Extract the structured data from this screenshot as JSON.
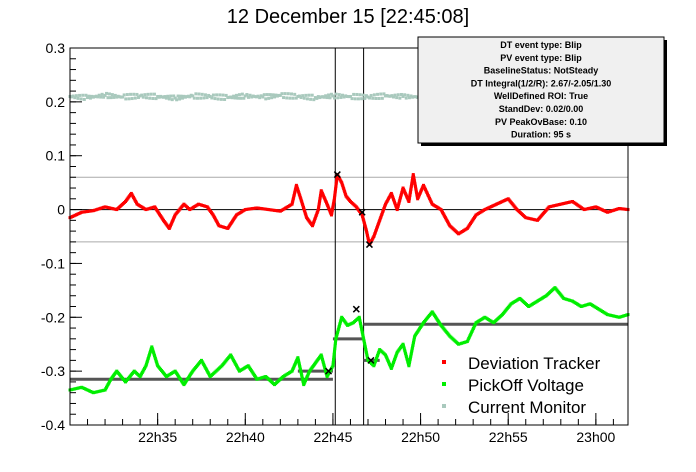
{
  "chart_data": {
    "type": "scatter",
    "title": "12 December 15 [22:45:08]",
    "xlabel": "",
    "ylabel": "",
    "xlim": [
      "22:30:00",
      "23:01:50"
    ],
    "ylim": [
      -0.4,
      0.3
    ],
    "x_ticks": [
      "22h35",
      "22h40",
      "22h45",
      "22h50",
      "22h55",
      "23h00"
    ],
    "y_ticks": [
      "0.3",
      "0.2",
      "0.1",
      "0",
      "-0.1",
      "-0.2",
      "-0.3",
      "-0.4"
    ],
    "colors": {
      "deviation": "#ff0000",
      "pickoff": "#00ee00",
      "current": "#a9c9bd",
      "baseline": "#555555",
      "event_marker": "#000000"
    },
    "vertical_lines": [
      "22:45:08",
      "22:46:45"
    ],
    "threshold_lines": [
      0.06,
      -0.06
    ],
    "baseline_segments": [
      {
        "x": [
          "22:30:00",
          "22:45:00"
        ],
        "y": -0.315
      },
      {
        "x": [
          "22:43:00",
          "22:45:00"
        ],
        "y": -0.3
      },
      {
        "x": [
          "22:45:00",
          "22:46:45"
        ],
        "y": -0.24
      },
      {
        "x": [
          "22:46:45",
          "23:01:50"
        ],
        "y": -0.213
      },
      {
        "x": [
          "22:46:45",
          "22:47:40"
        ],
        "y": -0.28
      }
    ],
    "series": [
      {
        "name": "Deviation Tracker",
        "points": [
          [
            "22:30:00",
            -0.015
          ],
          [
            "22:30:40",
            -0.005
          ],
          [
            "22:31:20",
            -0.002
          ],
          [
            "22:32:00",
            0.005
          ],
          [
            "22:32:40",
            0.0
          ],
          [
            "22:33:10",
            0.015
          ],
          [
            "22:33:30",
            0.03
          ],
          [
            "22:33:50",
            0.01
          ],
          [
            "22:34:20",
            0.0
          ],
          [
            "22:34:50",
            0.005
          ],
          [
            "22:35:20",
            -0.02
          ],
          [
            "22:35:40",
            -0.035
          ],
          [
            "22:36:00",
            -0.01
          ],
          [
            "22:36:30",
            0.01
          ],
          [
            "22:36:50",
            0.0
          ],
          [
            "22:37:20",
            0.01
          ],
          [
            "22:37:50",
            0.005
          ],
          [
            "22:38:10",
            -0.01
          ],
          [
            "22:38:30",
            -0.03
          ],
          [
            "22:39:00",
            -0.035
          ],
          [
            "22:39:30",
            -0.01
          ],
          [
            "22:40:00",
            0.0
          ],
          [
            "22:40:40",
            0.003
          ],
          [
            "22:41:20",
            0.0
          ],
          [
            "22:42:00",
            -0.003
          ],
          [
            "22:42:40",
            0.01
          ],
          [
            "22:42:55",
            0.045
          ],
          [
            "22:43:10",
            0.02
          ],
          [
            "22:43:30",
            -0.015
          ],
          [
            "22:43:50",
            -0.03
          ],
          [
            "22:44:10",
            0.0
          ],
          [
            "22:44:20",
            0.035
          ],
          [
            "22:44:40",
            0.01
          ],
          [
            "22:44:55",
            -0.01
          ],
          [
            "22:45:05",
            0.02
          ],
          [
            "22:45:15",
            0.065
          ],
          [
            "22:45:30",
            0.05
          ],
          [
            "22:45:45",
            0.025
          ],
          [
            "22:46:00",
            0.015
          ],
          [
            "22:46:20",
            0.005
          ],
          [
            "22:46:40",
            -0.01
          ],
          [
            "22:46:55",
            -0.04
          ],
          [
            "22:47:05",
            -0.065
          ],
          [
            "22:47:20",
            -0.05
          ],
          [
            "22:47:40",
            -0.02
          ],
          [
            "22:48:00",
            0.01
          ],
          [
            "22:48:20",
            0.03
          ],
          [
            "22:48:40",
            0.0
          ],
          [
            "22:49:00",
            0.04
          ],
          [
            "22:49:20",
            0.015
          ],
          [
            "22:49:35",
            0.065
          ],
          [
            "22:49:50",
            0.02
          ],
          [
            "22:50:10",
            0.045
          ],
          [
            "22:50:40",
            0.01
          ],
          [
            "22:51:10",
            0.0
          ],
          [
            "22:51:40",
            -0.03
          ],
          [
            "22:52:10",
            -0.045
          ],
          [
            "22:52:40",
            -0.035
          ],
          [
            "22:53:10",
            -0.01
          ],
          [
            "22:53:40",
            0.0
          ],
          [
            "22:54:20",
            0.01
          ],
          [
            "22:55:00",
            0.02
          ],
          [
            "22:55:30",
            0.0
          ],
          [
            "22:56:00",
            -0.015
          ],
          [
            "22:56:40",
            -0.02
          ],
          [
            "22:57:20",
            0.005
          ],
          [
            "22:58:00",
            0.01
          ],
          [
            "22:58:40",
            0.015
          ],
          [
            "22:59:20",
            0.0
          ],
          [
            "23:00:00",
            0.005
          ],
          [
            "23:00:40",
            -0.005
          ],
          [
            "23:01:20",
            0.002
          ],
          [
            "23:01:50",
            0.0
          ]
        ]
      },
      {
        "name": "PickOff Voltage",
        "points": [
          [
            "22:30:00",
            -0.335
          ],
          [
            "22:30:40",
            -0.33
          ],
          [
            "22:31:20",
            -0.34
          ],
          [
            "22:32:00",
            -0.335
          ],
          [
            "22:32:20",
            -0.315
          ],
          [
            "22:32:40",
            -0.3
          ],
          [
            "22:33:10",
            -0.32
          ],
          [
            "22:33:40",
            -0.3
          ],
          [
            "22:34:00",
            -0.31
          ],
          [
            "22:34:20",
            -0.29
          ],
          [
            "22:34:40",
            -0.255
          ],
          [
            "22:35:00",
            -0.29
          ],
          [
            "22:35:30",
            -0.31
          ],
          [
            "22:36:00",
            -0.3
          ],
          [
            "22:36:30",
            -0.325
          ],
          [
            "22:37:00",
            -0.3
          ],
          [
            "22:37:30",
            -0.28
          ],
          [
            "22:38:00",
            -0.31
          ],
          [
            "22:38:40",
            -0.29
          ],
          [
            "22:39:10",
            -0.27
          ],
          [
            "22:39:40",
            -0.3
          ],
          [
            "22:40:10",
            -0.29
          ],
          [
            "22:40:40",
            -0.315
          ],
          [
            "22:41:10",
            -0.31
          ],
          [
            "22:41:40",
            -0.325
          ],
          [
            "22:42:10",
            -0.31
          ],
          [
            "22:42:40",
            -0.3
          ],
          [
            "22:43:00",
            -0.275
          ],
          [
            "22:43:20",
            -0.325
          ],
          [
            "22:43:40",
            -0.3
          ],
          [
            "22:44:00",
            -0.285
          ],
          [
            "22:44:20",
            -0.27
          ],
          [
            "22:44:40",
            -0.31
          ],
          [
            "22:45:00",
            -0.29
          ],
          [
            "22:45:10",
            -0.24
          ],
          [
            "22:45:30",
            -0.2
          ],
          [
            "22:45:50",
            -0.215
          ],
          [
            "22:46:10",
            -0.21
          ],
          [
            "22:46:30",
            -0.2
          ],
          [
            "22:46:45",
            -0.24
          ],
          [
            "22:47:00",
            -0.28
          ],
          [
            "22:47:20",
            -0.29
          ],
          [
            "22:47:40",
            -0.26
          ],
          [
            "22:48:00",
            -0.27
          ],
          [
            "22:48:20",
            -0.295
          ],
          [
            "22:48:40",
            -0.265
          ],
          [
            "22:49:00",
            -0.25
          ],
          [
            "22:49:20",
            -0.29
          ],
          [
            "22:49:40",
            -0.235
          ],
          [
            "22:50:10",
            -0.21
          ],
          [
            "22:50:40",
            -0.19
          ],
          [
            "22:51:10",
            -0.215
          ],
          [
            "22:51:40",
            -0.235
          ],
          [
            "22:52:10",
            -0.25
          ],
          [
            "22:52:40",
            -0.245
          ],
          [
            "22:53:10",
            -0.21
          ],
          [
            "22:53:40",
            -0.2
          ],
          [
            "22:54:10",
            -0.21
          ],
          [
            "22:54:40",
            -0.195
          ],
          [
            "22:55:10",
            -0.175
          ],
          [
            "22:55:40",
            -0.165
          ],
          [
            "22:56:10",
            -0.18
          ],
          [
            "22:56:40",
            -0.17
          ],
          [
            "22:57:10",
            -0.16
          ],
          [
            "22:57:40",
            -0.145
          ],
          [
            "22:58:10",
            -0.165
          ],
          [
            "22:58:40",
            -0.17
          ],
          [
            "22:59:10",
            -0.18
          ],
          [
            "22:59:40",
            -0.175
          ],
          [
            "23:00:10",
            -0.185
          ],
          [
            "23:00:40",
            -0.195
          ],
          [
            "23:01:20",
            -0.2
          ],
          [
            "23:01:50",
            -0.195
          ]
        ]
      },
      {
        "name": "Current Monitor",
        "points": [
          [
            "22:30:00",
            0.21
          ],
          [
            "22:31:00",
            0.208
          ],
          [
            "22:32:00",
            0.212
          ],
          [
            "22:33:00",
            0.209
          ],
          [
            "22:34:00",
            0.211
          ],
          [
            "22:35:00",
            0.21
          ],
          [
            "22:36:00",
            0.207
          ],
          [
            "22:37:00",
            0.211
          ],
          [
            "22:38:00",
            0.21
          ],
          [
            "22:39:00",
            0.208
          ],
          [
            "22:40:00",
            0.211
          ],
          [
            "22:41:00",
            0.209
          ],
          [
            "22:42:00",
            0.212
          ],
          [
            "22:43:00",
            0.21
          ],
          [
            "22:44:00",
            0.208
          ],
          [
            "22:45:00",
            0.211
          ],
          [
            "22:46:00",
            0.21
          ],
          [
            "22:47:00",
            0.209
          ],
          [
            "22:48:00",
            0.211
          ],
          [
            "22:49:00",
            0.21
          ],
          [
            "22:50:00",
            0.209
          ]
        ]
      }
    ],
    "event_markers": [
      {
        "x": "22:44:45",
        "y": -0.3
      },
      {
        "x": "22:45:15",
        "y": 0.065
      },
      {
        "x": "22:46:20",
        "y": -0.185
      },
      {
        "x": "22:46:40",
        "y": -0.005
      },
      {
        "x": "22:47:05",
        "y": -0.065
      },
      {
        "x": "22:47:10",
        "y": -0.28
      }
    ],
    "stats_box": [
      "DT event type: Blip",
      "PV event type: Blip",
      "BaselineStatus: NotSteady",
      "DT Integral(1/2/R): 2.67/-2.05/1.30",
      "WellDefined ROI: True",
      "StandDev: 0.02/0.00",
      "PV PeakOvBase: 0.10",
      "Duration: 95 s"
    ],
    "legend": [
      "Deviation Tracker",
      "PickOff Voltage",
      "Current Monitor"
    ],
    "legend_position": "bottom-right",
    "grid": false
  }
}
